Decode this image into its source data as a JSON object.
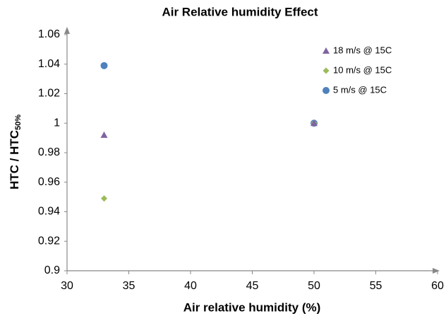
{
  "chart_data": {
    "type": "scatter",
    "title": "Air Relative humidity Effect",
    "x_label": "Air relative humidity (%)",
    "y_label": "HTC  / HTC",
    "y_label_sub": "50%",
    "xlim": [
      30,
      60
    ],
    "xticks": [
      30,
      35,
      40,
      45,
      50,
      55,
      60
    ],
    "ylim": [
      0.9,
      1.06
    ],
    "yticks": [
      0.9,
      0.92,
      0.94,
      0.96,
      0.98,
      1,
      1.02,
      1.04,
      1.06
    ],
    "legend": "upper right",
    "series": [
      {
        "name": "18 m/s @ 15C",
        "color": "#8064a2",
        "marker": "triangle",
        "x": [
          33,
          50
        ],
        "values": [
          0.992,
          1.0
        ]
      },
      {
        "name": "10 m/s @ 15C",
        "color": "#9bbb59",
        "marker": "diamond",
        "x": [
          33,
          50
        ],
        "values": [
          0.949,
          1.0
        ]
      },
      {
        "name": "5 m/s @ 15C",
        "color": "#4f81bd",
        "marker": "circle",
        "x": [
          33,
          50
        ],
        "values": [
          1.039,
          1.0
        ]
      }
    ]
  }
}
